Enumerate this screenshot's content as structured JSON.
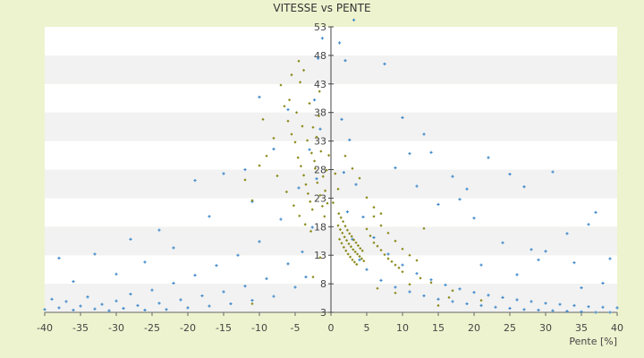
{
  "chart_data": {
    "type": "scatter",
    "title": "VITESSE vs PENTE",
    "xlabel": "Pente [%]",
    "ylabel": "",
    "xlim": [
      -40,
      40
    ],
    "ylim": [
      3,
      53
    ],
    "x_ticks": [
      -40,
      -35,
      -30,
      -25,
      -20,
      -15,
      -10,
      -5,
      0,
      5,
      10,
      15,
      20,
      25,
      30,
      35,
      40
    ],
    "y_ticks": [
      3,
      8,
      13,
      18,
      23,
      28,
      33,
      38,
      43,
      48,
      53
    ],
    "grid": "horizontal bands",
    "legend": "none",
    "series": [
      {
        "color": "#3a86c8",
        "marker": "plus",
        "points": [
          [
            -40,
            3.5
          ],
          [
            -39,
            5.3
          ],
          [
            -38,
            3.8
          ],
          [
            -37,
            4.9
          ],
          [
            -36,
            3.4
          ],
          [
            -35,
            4.1
          ],
          [
            -34,
            5.7
          ],
          [
            -33,
            3.6
          ],
          [
            -32,
            4.4
          ],
          [
            -31,
            3.3
          ],
          [
            -30,
            5.0
          ],
          [
            -29,
            3.7
          ],
          [
            -28,
            6.2
          ],
          [
            -27,
            4.2
          ],
          [
            -26,
            3.4
          ],
          [
            -25,
            6.9
          ],
          [
            -24,
            4.6
          ],
          [
            -23,
            3.5
          ],
          [
            -22,
            8.1
          ],
          [
            -21,
            5.2
          ],
          [
            -20,
            3.8
          ],
          [
            -19,
            9.5
          ],
          [
            -18,
            5.9
          ],
          [
            -17,
            4.1
          ],
          [
            -16,
            11.2
          ],
          [
            -15,
            6.6
          ],
          [
            -14,
            4.5
          ],
          [
            -13,
            13.0
          ],
          [
            -12,
            7.6
          ],
          [
            -11,
            5.1
          ],
          [
            -10,
            15.4
          ],
          [
            -9,
            8.9
          ],
          [
            -8,
            5.8
          ],
          [
            -7,
            19.3
          ],
          [
            -6,
            11.5
          ],
          [
            -5,
            7.4
          ],
          [
            -4.5,
            24.8
          ],
          [
            -4,
            13.6
          ],
          [
            -3.5,
            9.2
          ],
          [
            -3,
            31.5
          ],
          [
            -2.6,
            17.9
          ],
          [
            -2.3,
            40.2
          ],
          [
            -2,
            26.4
          ],
          [
            -1.8,
            47.5
          ],
          [
            -1.5,
            35.1
          ],
          [
            -1.2,
            51.0
          ],
          [
            -38,
            12.5
          ],
          [
            -33,
            13.2
          ],
          [
            -28,
            15.8
          ],
          [
            -24,
            17.4
          ],
          [
            -19,
            26.1
          ],
          [
            -15,
            27.3
          ],
          [
            -12,
            28.0
          ],
          [
            -10,
            40.7
          ],
          [
            -8,
            31.6
          ],
          [
            -6,
            38.5
          ],
          [
            -11,
            22.4
          ],
          [
            -17,
            19.8
          ],
          [
            -22,
            14.3
          ],
          [
            -26,
            11.8
          ],
          [
            -30,
            9.7
          ],
          [
            -36,
            8.4
          ],
          [
            1.2,
            50.2
          ],
          [
            1.5,
            36.8
          ],
          [
            1.8,
            27.5
          ],
          [
            2,
            47.1
          ],
          [
            2.3,
            20.6
          ],
          [
            2.6,
            33.2
          ],
          [
            3,
            15.8
          ],
          [
            3.5,
            25.4
          ],
          [
            4,
            12.2
          ],
          [
            4.5,
            19.7
          ],
          [
            5,
            10.5
          ],
          [
            6,
            16.1
          ],
          [
            7,
            8.6
          ],
          [
            8,
            13.2
          ],
          [
            9,
            7.4
          ],
          [
            10,
            11.3
          ],
          [
            11,
            6.6
          ],
          [
            12,
            9.8
          ],
          [
            13,
            5.9
          ],
          [
            14,
            8.7
          ],
          [
            15,
            5.3
          ],
          [
            16,
            7.8
          ],
          [
            17,
            4.9
          ],
          [
            18,
            7.1
          ],
          [
            19,
            4.5
          ],
          [
            20,
            6.5
          ],
          [
            21,
            4.2
          ],
          [
            22,
            6.0
          ],
          [
            23,
            3.9
          ],
          [
            24,
            5.6
          ],
          [
            25,
            3.7
          ],
          [
            26,
            5.2
          ],
          [
            27,
            3.5
          ],
          [
            28,
            4.9
          ],
          [
            29,
            3.4
          ],
          [
            30,
            4.6
          ],
          [
            31,
            3.3
          ],
          [
            32,
            4.4
          ],
          [
            33,
            3.2
          ],
          [
            34,
            4.2
          ],
          [
            35,
            3.1
          ],
          [
            36,
            4.0
          ],
          [
            37,
            3.0
          ],
          [
            38,
            3.9
          ],
          [
            39,
            3.0
          ],
          [
            40,
            3.8
          ],
          [
            7.5,
            46.5
          ],
          [
            10,
            37.1
          ],
          [
            11,
            30.8
          ],
          [
            13,
            34.2
          ],
          [
            14,
            31.0
          ],
          [
            17,
            26.8
          ],
          [
            19,
            24.6
          ],
          [
            22,
            30.1
          ],
          [
            25,
            27.2
          ],
          [
            27,
            25.0
          ],
          [
            31,
            27.6
          ],
          [
            20,
            19.5
          ],
          [
            24,
            15.2
          ],
          [
            28,
            14.0
          ],
          [
            33,
            16.8
          ],
          [
            36,
            18.4
          ],
          [
            37,
            20.5
          ],
          [
            29,
            12.2
          ],
          [
            34,
            11.7
          ],
          [
            39,
            12.4
          ],
          [
            26,
            9.6
          ],
          [
            21,
            11.3
          ],
          [
            38,
            8.1
          ],
          [
            30,
            13.7
          ],
          [
            18,
            22.8
          ],
          [
            15,
            21.9
          ],
          [
            12,
            25.1
          ],
          [
            9,
            28.3
          ],
          [
            3.2,
            54.2
          ],
          [
            35,
            7.3
          ]
        ]
      },
      {
        "color": "#8a8a1a",
        "marker": "diamond",
        "points": [
          [
            -6,
            36.5
          ],
          [
            -5.5,
            34.2
          ],
          [
            -5,
            32.8
          ],
          [
            -4.6,
            30.1
          ],
          [
            -4.2,
            28.6
          ],
          [
            -3.8,
            27.0
          ],
          [
            -3.5,
            25.4
          ],
          [
            -3.2,
            23.8
          ],
          [
            -2.9,
            22.4
          ],
          [
            -2.6,
            21.0
          ],
          [
            -2.3,
            29.5
          ],
          [
            -2.0,
            33.7
          ],
          [
            -1.7,
            37.4
          ],
          [
            -1.4,
            31.2
          ],
          [
            -1.1,
            26.8
          ],
          [
            -0.8,
            24.3
          ],
          [
            -0.5,
            22.1
          ],
          [
            -5.8,
            40.2
          ],
          [
            -4.8,
            38.0
          ],
          [
            -4.0,
            35.6
          ],
          [
            -3.3,
            33.1
          ],
          [
            -2.7,
            30.9
          ],
          [
            -2.2,
            28.2
          ],
          [
            -1.9,
            25.7
          ],
          [
            -1.5,
            23.5
          ],
          [
            -1.2,
            21.6
          ],
          [
            -0.9,
            19.8
          ],
          [
            -0.6,
            27.9
          ],
          [
            -0.3,
            30.5
          ],
          [
            -7,
            42.8
          ],
          [
            -6.5,
            39.1
          ],
          [
            -8,
            33.5
          ],
          [
            -9,
            30.4
          ],
          [
            -10,
            28.7
          ],
          [
            -11,
            22.6
          ],
          [
            -7.5,
            26.9
          ],
          [
            -6.2,
            24.1
          ],
          [
            -5.2,
            21.7
          ],
          [
            -4.4,
            19.9
          ],
          [
            -3.6,
            18.4
          ],
          [
            -2.8,
            17.2
          ],
          [
            -12,
            26.2
          ],
          [
            -9.5,
            36.8
          ],
          [
            -3,
            39.6
          ],
          [
            -2.5,
            35.4
          ],
          [
            -1.6,
            41.7
          ],
          [
            -4.3,
            43.3
          ],
          [
            1,
            18.2
          ],
          [
            1.3,
            17.5
          ],
          [
            1.6,
            16.9
          ],
          [
            1.9,
            16.2
          ],
          [
            2.2,
            15.6
          ],
          [
            2.5,
            15.0
          ],
          [
            2.8,
            14.5
          ],
          [
            3.1,
            14.0
          ],
          [
            3.4,
            13.6
          ],
          [
            3.7,
            13.2
          ],
          [
            4.0,
            12.8
          ],
          [
            4.3,
            12.4
          ],
          [
            4.6,
            12.0
          ],
          [
            1.2,
            15.8
          ],
          [
            1.5,
            15.1
          ],
          [
            1.8,
            14.4
          ],
          [
            2.1,
            13.8
          ],
          [
            2.4,
            13.2
          ],
          [
            2.7,
            12.7
          ],
          [
            3.0,
            12.2
          ],
          [
            3.3,
            11.8
          ],
          [
            3.6,
            11.4
          ],
          [
            1.1,
            20.3
          ],
          [
            1.4,
            19.6
          ],
          [
            1.7,
            18.9
          ],
          [
            2.0,
            18.1
          ],
          [
            2.3,
            17.4
          ],
          [
            2.6,
            16.8
          ],
          [
            2.9,
            16.3
          ],
          [
            3.2,
            15.7
          ],
          [
            3.5,
            15.2
          ],
          [
            3.8,
            14.7
          ],
          [
            4.1,
            14.2
          ],
          [
            4.4,
            13.8
          ],
          [
            5,
            17.6
          ],
          [
            5.5,
            16.4
          ],
          [
            6,
            15.2
          ],
          [
            6.5,
            14.6
          ],
          [
            7,
            13.9
          ],
          [
            7.5,
            13.1
          ],
          [
            8,
            12.4
          ],
          [
            8.5,
            11.9
          ],
          [
            9,
            11.3
          ],
          [
            9.5,
            10.8
          ],
          [
            10,
            10.1
          ],
          [
            6,
            19.8
          ],
          [
            7,
            18.2
          ],
          [
            8,
            16.9
          ],
          [
            9,
            15.5
          ],
          [
            10,
            14.1
          ],
          [
            11,
            13.0
          ],
          [
            12,
            12.1
          ],
          [
            5,
            23.1
          ],
          [
            6,
            21.4
          ],
          [
            7,
            20.3
          ],
          [
            4,
            26.5
          ],
          [
            3,
            28.2
          ],
          [
            2,
            30.4
          ],
          [
            1,
            24.6
          ],
          [
            0.6,
            27.3
          ],
          [
            0.3,
            22.2
          ],
          [
            -4.5,
            47.0
          ],
          [
            -5.5,
            44.6
          ],
          [
            -3.8,
            45.4
          ],
          [
            -11,
            4.5
          ],
          [
            -2.5,
            9.2
          ],
          [
            -1.5,
            12.6
          ],
          [
            6.5,
            7.2
          ],
          [
            9,
            6.4
          ],
          [
            11,
            7.9
          ],
          [
            12.5,
            9.0
          ],
          [
            14,
            8.2
          ],
          [
            15,
            4.2
          ],
          [
            16.5,
            5.6
          ],
          [
            21,
            5.1
          ],
          [
            17,
            6.8
          ],
          [
            13,
            17.7
          ]
        ]
      }
    ]
  }
}
